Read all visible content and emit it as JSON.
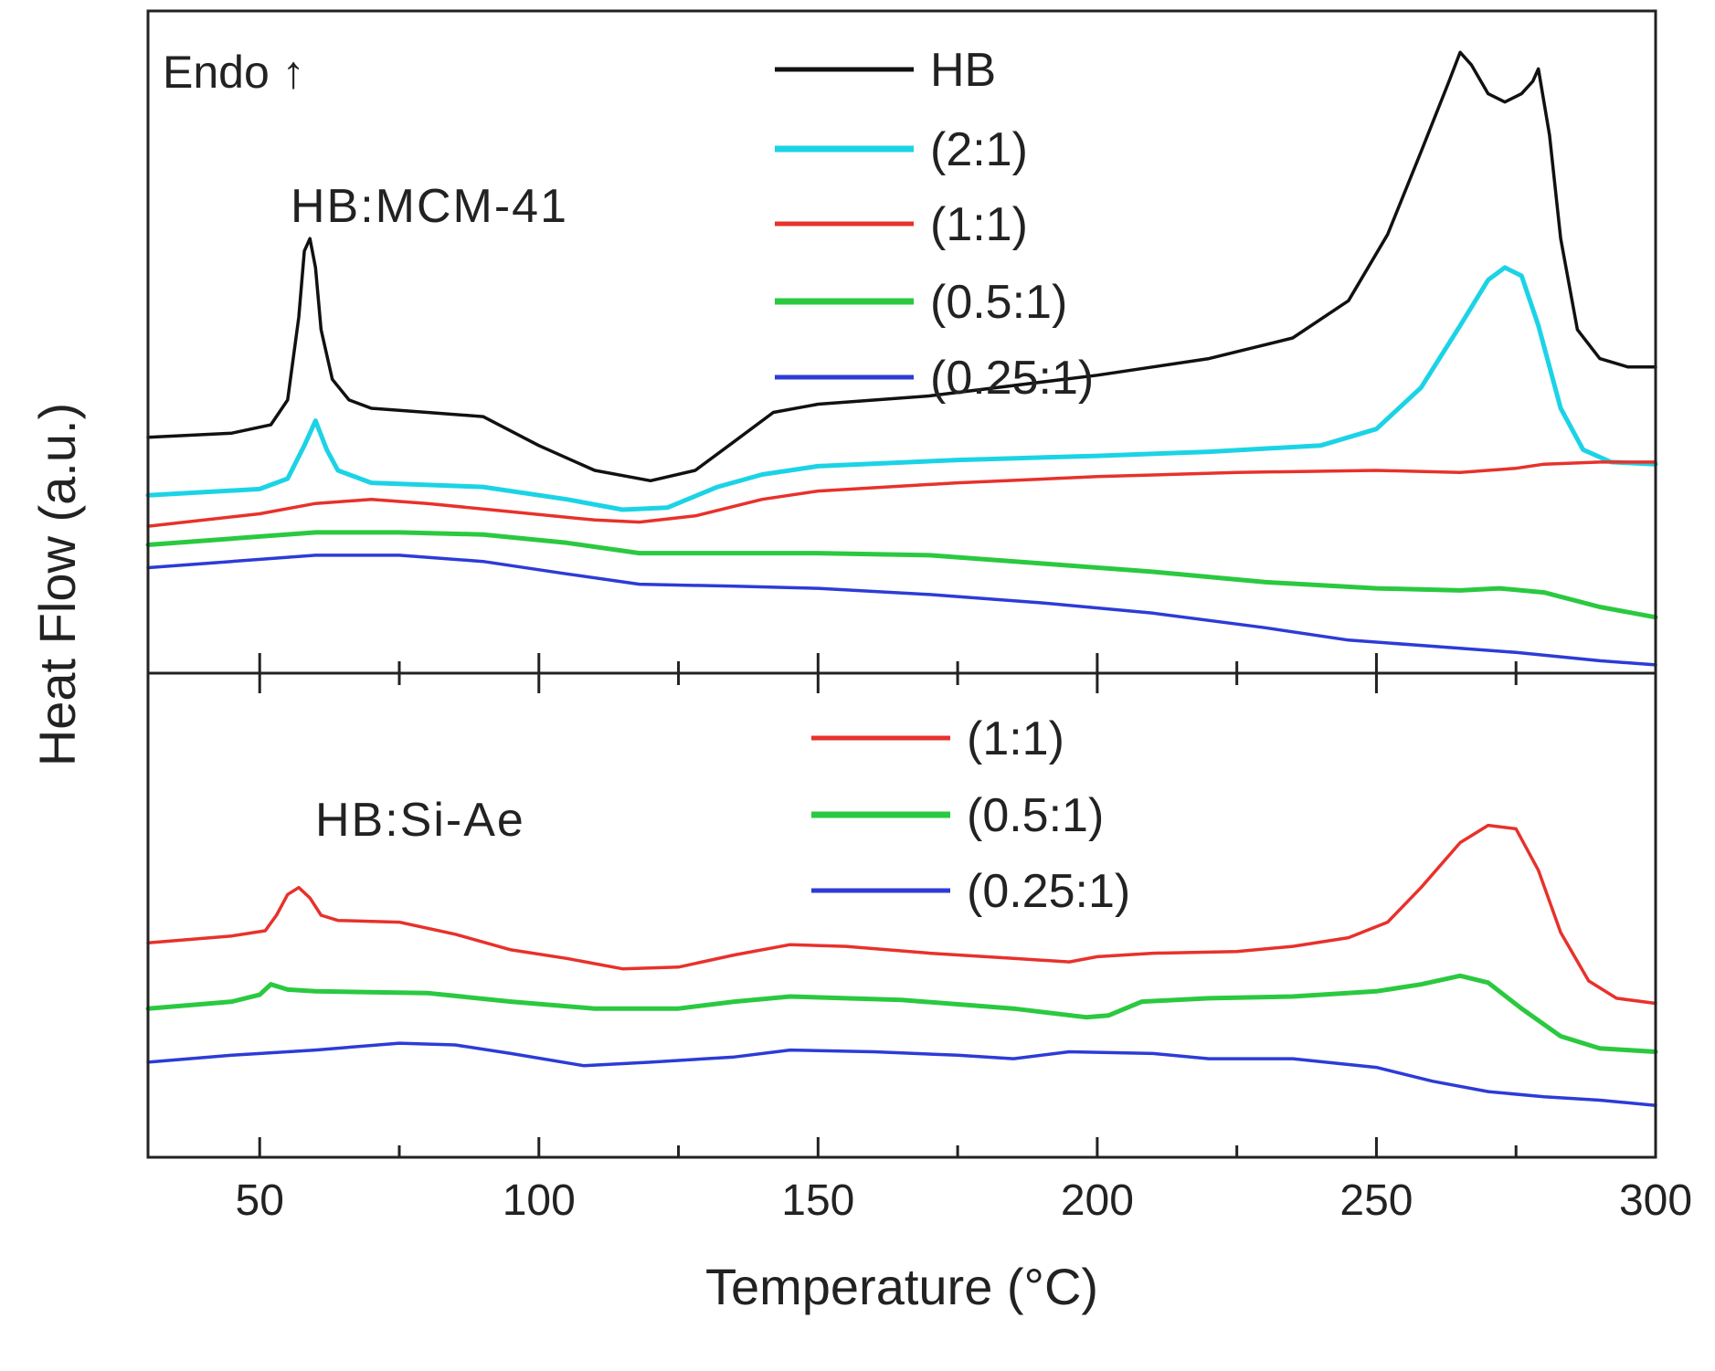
{
  "chart_data": {
    "type": "line",
    "y_axis_label": "Heat Flow (a.u.)",
    "x_axis_label": "Temperature (°C)",
    "xlim": [
      30,
      300
    ],
    "x_ticks": [
      50,
      100,
      150,
      200,
      250,
      300
    ],
    "x_tick_labels": [
      "50",
      "100",
      "150",
      "200",
      "250",
      "300"
    ],
    "endo_annotation": "Endo ↑",
    "panels": [
      {
        "name": "HB:MCM-41",
        "label": "HB:MCM-41",
        "ylim": [
          0,
          16
        ],
        "series": [
          {
            "name": "HB",
            "color": "#111111",
            "points": [
              [
                30,
                5.7
              ],
              [
                45,
                5.8
              ],
              [
                52,
                6.0
              ],
              [
                55,
                6.6
              ],
              [
                57,
                8.6
              ],
              [
                58,
                10.2
              ],
              [
                59,
                10.5
              ],
              [
                60,
                9.8
              ],
              [
                61,
                8.3
              ],
              [
                63,
                7.1
              ],
              [
                66,
                6.6
              ],
              [
                70,
                6.4
              ],
              [
                80,
                6.3
              ],
              [
                90,
                6.2
              ],
              [
                100,
                5.5
              ],
              [
                110,
                4.9
              ],
              [
                120,
                4.65
              ],
              [
                128,
                4.9
              ],
              [
                135,
                5.6
              ],
              [
                142,
                6.3
              ],
              [
                150,
                6.5
              ],
              [
                170,
                6.7
              ],
              [
                200,
                7.2
              ],
              [
                220,
                7.6
              ],
              [
                235,
                8.1
              ],
              [
                245,
                9.0
              ],
              [
                252,
                10.6
              ],
              [
                258,
                12.6
              ],
              [
                263,
                14.3
              ],
              [
                265,
                15.0
              ],
              [
                267,
                14.7
              ],
              [
                270,
                14.0
              ],
              [
                273,
                13.8
              ],
              [
                276,
                14.0
              ],
              [
                278,
                14.3
              ],
              [
                279,
                14.6
              ],
              [
                281,
                13.0
              ],
              [
                283,
                10.5
              ],
              [
                286,
                8.3
              ],
              [
                290,
                7.6
              ],
              [
                295,
                7.4
              ],
              [
                300,
                7.4
              ]
            ]
          },
          {
            "name": "(2:1)",
            "color": "#1cd3e6",
            "points": [
              [
                30,
                4.3
              ],
              [
                50,
                4.45
              ],
              [
                55,
                4.7
              ],
              [
                58,
                5.5
              ],
              [
                60,
                6.1
              ],
              [
                62,
                5.4
              ],
              [
                64,
                4.9
              ],
              [
                70,
                4.6
              ],
              [
                90,
                4.5
              ],
              [
                105,
                4.2
              ],
              [
                115,
                3.95
              ],
              [
                123,
                4.0
              ],
              [
                132,
                4.5
              ],
              [
                140,
                4.8
              ],
              [
                150,
                5.0
              ],
              [
                175,
                5.15
              ],
              [
                200,
                5.25
              ],
              [
                220,
                5.35
              ],
              [
                240,
                5.5
              ],
              [
                250,
                5.9
              ],
              [
                258,
                6.9
              ],
              [
                265,
                8.4
              ],
              [
                270,
                9.5
              ],
              [
                273,
                9.8
              ],
              [
                276,
                9.6
              ],
              [
                279,
                8.4
              ],
              [
                283,
                6.4
              ],
              [
                287,
                5.4
              ],
              [
                292,
                5.1
              ],
              [
                300,
                5.05
              ]
            ]
          },
          {
            "name": "(1:1)",
            "color": "#e8312b",
            "points": [
              [
                30,
                3.55
              ],
              [
                50,
                3.85
              ],
              [
                60,
                4.1
              ],
              [
                70,
                4.2
              ],
              [
                80,
                4.1
              ],
              [
                95,
                3.9
              ],
              [
                110,
                3.7
              ],
              [
                118,
                3.65
              ],
              [
                128,
                3.8
              ],
              [
                140,
                4.2
              ],
              [
                150,
                4.4
              ],
              [
                175,
                4.6
              ],
              [
                200,
                4.75
              ],
              [
                225,
                4.85
              ],
              [
                250,
                4.9
              ],
              [
                265,
                4.85
              ],
              [
                275,
                4.95
              ],
              [
                280,
                5.05
              ],
              [
                290,
                5.1
              ],
              [
                300,
                5.1
              ]
            ]
          },
          {
            "name": "(0.5:1)",
            "color": "#2ac940",
            "points": [
              [
                30,
                3.1
              ],
              [
                45,
                3.25
              ],
              [
                60,
                3.4
              ],
              [
                75,
                3.4
              ],
              [
                90,
                3.35
              ],
              [
                105,
                3.15
              ],
              [
                118,
                2.9
              ],
              [
                135,
                2.9
              ],
              [
                150,
                2.9
              ],
              [
                170,
                2.85
              ],
              [
                190,
                2.65
              ],
              [
                210,
                2.45
              ],
              [
                230,
                2.2
              ],
              [
                250,
                2.05
              ],
              [
                265,
                2.0
              ],
              [
                272,
                2.05
              ],
              [
                280,
                1.95
              ],
              [
                290,
                1.6
              ],
              [
                300,
                1.35
              ]
            ]
          },
          {
            "name": "(0.25:1)",
            "color": "#2d3bd6",
            "points": [
              [
                30,
                2.55
              ],
              [
                45,
                2.7
              ],
              [
                60,
                2.85
              ],
              [
                75,
                2.85
              ],
              [
                90,
                2.7
              ],
              [
                105,
                2.4
              ],
              [
                118,
                2.15
              ],
              [
                135,
                2.1
              ],
              [
                150,
                2.05
              ],
              [
                170,
                1.9
              ],
              [
                190,
                1.7
              ],
              [
                210,
                1.45
              ],
              [
                230,
                1.1
              ],
              [
                245,
                0.8
              ],
              [
                260,
                0.65
              ],
              [
                275,
                0.5
              ],
              [
                290,
                0.3
              ],
              [
                300,
                0.2
              ]
            ]
          }
        ]
      },
      {
        "name": "HB:Si-Ae",
        "label": "HB:Si-Ae",
        "ylim": [
          0,
          14
        ],
        "series": [
          {
            "name": "(1:1)",
            "color": "#e8312b",
            "points": [
              [
                30,
                6.2
              ],
              [
                45,
                6.4
              ],
              [
                51,
                6.55
              ],
              [
                53,
                7.0
              ],
              [
                55,
                7.6
              ],
              [
                57,
                7.8
              ],
              [
                59,
                7.5
              ],
              [
                61,
                7.0
              ],
              [
                64,
                6.85
              ],
              [
                75,
                6.8
              ],
              [
                85,
                6.45
              ],
              [
                95,
                6.0
              ],
              [
                105,
                5.75
              ],
              [
                115,
                5.45
              ],
              [
                125,
                5.5
              ],
              [
                135,
                5.85
              ],
              [
                145,
                6.15
              ],
              [
                155,
                6.1
              ],
              [
                170,
                5.9
              ],
              [
                185,
                5.75
              ],
              [
                195,
                5.65
              ],
              [
                200,
                5.8
              ],
              [
                210,
                5.9
              ],
              [
                225,
                5.95
              ],
              [
                235,
                6.1
              ],
              [
                245,
                6.35
              ],
              [
                252,
                6.8
              ],
              [
                258,
                7.8
              ],
              [
                265,
                9.1
              ],
              [
                270,
                9.6
              ],
              [
                275,
                9.5
              ],
              [
                279,
                8.3
              ],
              [
                283,
                6.5
              ],
              [
                288,
                5.1
              ],
              [
                293,
                4.6
              ],
              [
                300,
                4.45
              ]
            ]
          },
          {
            "name": "(0.5:1)",
            "color": "#2ac940",
            "points": [
              [
                30,
                4.3
              ],
              [
                45,
                4.5
              ],
              [
                50,
                4.7
              ],
              [
                52,
                5.0
              ],
              [
                55,
                4.85
              ],
              [
                60,
                4.8
              ],
              [
                80,
                4.75
              ],
              [
                95,
                4.5
              ],
              [
                110,
                4.3
              ],
              [
                125,
                4.3
              ],
              [
                135,
                4.5
              ],
              [
                145,
                4.65
              ],
              [
                165,
                4.55
              ],
              [
                185,
                4.3
              ],
              [
                198,
                4.05
              ],
              [
                202,
                4.1
              ],
              [
                208,
                4.5
              ],
              [
                220,
                4.6
              ],
              [
                235,
                4.65
              ],
              [
                250,
                4.8
              ],
              [
                258,
                5.0
              ],
              [
                265,
                5.25
              ],
              [
                270,
                5.05
              ],
              [
                276,
                4.3
              ],
              [
                283,
                3.5
              ],
              [
                290,
                3.15
              ],
              [
                300,
                3.05
              ]
            ]
          },
          {
            "name": "(0.25:1)",
            "color": "#2d3bd6",
            "points": [
              [
                30,
                2.75
              ],
              [
                45,
                2.95
              ],
              [
                60,
                3.1
              ],
              [
                75,
                3.3
              ],
              [
                85,
                3.25
              ],
              [
                95,
                3.0
              ],
              [
                108,
                2.65
              ],
              [
                120,
                2.75
              ],
              [
                135,
                2.9
              ],
              [
                145,
                3.1
              ],
              [
                160,
                3.05
              ],
              [
                175,
                2.95
              ],
              [
                185,
                2.85
              ],
              [
                195,
                3.05
              ],
              [
                210,
                3.0
              ],
              [
                220,
                2.85
              ],
              [
                235,
                2.85
              ],
              [
                250,
                2.6
              ],
              [
                260,
                2.2
              ],
              [
                270,
                1.9
              ],
              [
                280,
                1.75
              ],
              [
                290,
                1.65
              ],
              [
                300,
                1.5
              ]
            ]
          }
        ]
      }
    ]
  }
}
